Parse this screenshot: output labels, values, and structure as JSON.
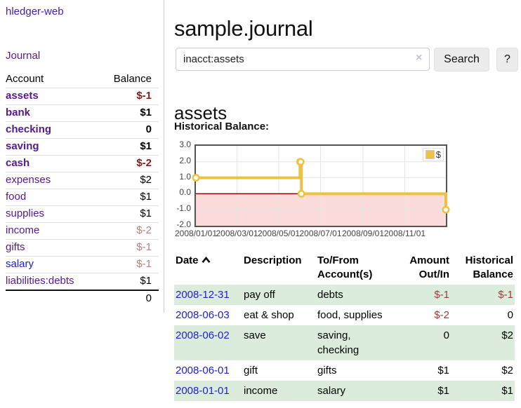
{
  "app": {
    "title": "hledger-web"
  },
  "nav": {
    "journal": "Journal"
  },
  "sidebar": {
    "account_header": "Account",
    "balance_header": "Balance",
    "accounts": [
      {
        "label": "assets",
        "indent": 1,
        "bold": true,
        "balance": "$-1",
        "balance_class": "neg-strong",
        "link": "purple"
      },
      {
        "label": "bank",
        "indent": 2,
        "bold": true,
        "balance": "$1",
        "balance_class": "pos",
        "link": "purple"
      },
      {
        "label": "checking",
        "indent": 3,
        "bold": true,
        "balance": "0",
        "balance_class": "pos",
        "link": "purple"
      },
      {
        "label": "saving",
        "indent": 3,
        "bold": true,
        "balance": "$1",
        "balance_class": "pos",
        "link": "purple"
      },
      {
        "label": "cash",
        "indent": 2,
        "bold": true,
        "balance": "$-2",
        "balance_class": "neg-strong",
        "link": "purple"
      },
      {
        "label": "expenses",
        "indent": 1,
        "bold": false,
        "balance": "$2",
        "balance_class": "pos",
        "link": "purple"
      },
      {
        "label": "food",
        "indent": 2,
        "bold": false,
        "balance": "$1",
        "balance_class": "pos",
        "link": "purple"
      },
      {
        "label": "supplies",
        "indent": 2,
        "bold": false,
        "balance": "$1",
        "balance_class": "pos",
        "link": "purple"
      },
      {
        "label": "income",
        "indent": 1,
        "bold": false,
        "balance": "$-2",
        "balance_class": "neg-muted",
        "link": "purple"
      },
      {
        "label": "gifts",
        "indent": 2,
        "bold": false,
        "balance": "$-1",
        "balance_class": "neg-muted",
        "link": "purple"
      },
      {
        "label": "salary",
        "indent": 2,
        "bold": false,
        "balance": "$-1",
        "balance_class": "neg-muted",
        "link": "blue"
      },
      {
        "label": "liabilities:debts",
        "indent": 1,
        "bold": false,
        "balance": "$1",
        "balance_class": "pos",
        "link": "purple"
      }
    ],
    "total": "0"
  },
  "main": {
    "title": "sample.journal",
    "search": {
      "value": "inacct:assets",
      "clear_icon": "×",
      "search_button": "Search",
      "help_button": "?"
    },
    "account_heading": "assets",
    "chart_title": "Historical Balance:"
  },
  "register": {
    "headers": {
      "date": "Date",
      "description": "Description",
      "accounts": "To/From Account(s)",
      "amount": "Amount Out/In",
      "balance": "Historical Balance"
    },
    "rows": [
      {
        "date": "2008-12-31",
        "description": "pay off",
        "accounts": "debts",
        "amount": "$-1",
        "amount_class": "neg",
        "balance": "$-1",
        "balance_class": "neg",
        "shaded": true
      },
      {
        "date": "2008-06-03",
        "description": "eat & shop",
        "accounts": "food, supplies",
        "amount": "$-2",
        "amount_class": "neg",
        "balance": "0",
        "balance_class": "pos",
        "shaded": false
      },
      {
        "date": "2008-06-02",
        "description": "save",
        "accounts": "saving, checking",
        "amount": "0",
        "amount_class": "pos",
        "balance": "$2",
        "balance_class": "pos",
        "shaded": true
      },
      {
        "date": "2008-06-01",
        "description": "gift",
        "accounts": "gifts",
        "amount": "$1",
        "amount_class": "pos",
        "balance": "$2",
        "balance_class": "pos",
        "shaded": false
      },
      {
        "date": "2008-01-01",
        "description": "income",
        "accounts": "salary",
        "amount": "$1",
        "amount_class": "pos",
        "balance": "$1",
        "balance_class": "pos",
        "shaded": true
      }
    ]
  },
  "chart_data": {
    "type": "line",
    "title": "Historical Balance:",
    "series": [
      {
        "name": "$",
        "color": "#EDC240",
        "step": true,
        "points": [
          [
            "2008-01-01",
            1
          ],
          [
            "2008-06-01",
            2
          ],
          [
            "2008-06-02",
            2
          ],
          [
            "2008-06-03",
            0
          ],
          [
            "2008-12-31",
            -1
          ]
        ]
      }
    ],
    "xlim": [
      "2008-01-01",
      "2008-12-31"
    ],
    "ylim": [
      -2,
      3
    ],
    "ytick_labels": [
      "3.0",
      "2.0",
      "1.0",
      "0.0",
      "-1.0",
      "-2.0"
    ],
    "yticks": [
      3,
      2,
      1,
      0,
      -1,
      -2
    ],
    "xticks": [
      "2008-01-01",
      "2008-03-01",
      "2008-05-01",
      "2008-07-01",
      "2008-09-01",
      "2008-11-01"
    ],
    "xtick_labels": [
      "2008/01/01",
      "2008/03/01",
      "2008/05/01",
      "2008/07/01",
      "2008/09/01",
      "2008/11/01"
    ],
    "grid": true,
    "legend_position": "top-right",
    "negative_region_color": "#fbdbdb",
    "zero_line_color": "#8b0000",
    "grid_color": "#e6e6e6"
  },
  "colors": {
    "purple_link": "#551a8b",
    "title_purple": "#4520b3",
    "blue_link": "#2020d0",
    "neg_strong": "#8b1a1a",
    "neg_muted": "#ba7f7f",
    "neg_table": "#9e3c3c",
    "row_green": "#dcecdc",
    "line_gold": "#EDC240"
  }
}
